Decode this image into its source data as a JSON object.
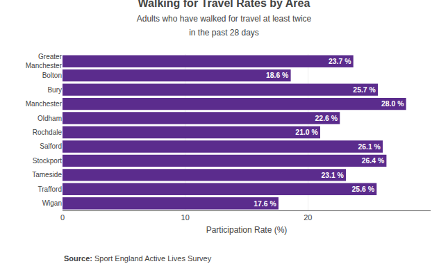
{
  "chart_data": {
    "type": "bar",
    "orientation": "horizontal",
    "title": "Walking for Travel Rates by Area",
    "subtitle": "Adults who have walked for travel at least twice\nin the past 28 days",
    "xlabel": "Participation Rate (%)",
    "annotations": [
      "Source:",
      " Sport England Active Lives Survey"
    ],
    "categories": [
      "Greater\nManchester",
      "Bolton",
      "Bury",
      "Manchester",
      "Oldham",
      "Rochdale",
      "Salford",
      "Stockport",
      "Tameside",
      "Trafford",
      "Wigan"
    ],
    "values": [
      23.7,
      18.6,
      25.7,
      28.0,
      22.6,
      21.0,
      26.1,
      26.4,
      23.1,
      25.6,
      17.6
    ],
    "value_labels": [
      "23.7 %",
      "18.6 %",
      "25.7 %",
      "28.0 %",
      "22.6 %",
      "21.0 %",
      "26.1 %",
      "26.4 %",
      "23.1 %",
      "25.6 %",
      "17.6 %"
    ],
    "data_labels": true,
    "color": "#5B2C8D",
    "xlim": [
      0,
      30
    ],
    "xticks": [
      0,
      10,
      20
    ],
    "grid": true
  }
}
